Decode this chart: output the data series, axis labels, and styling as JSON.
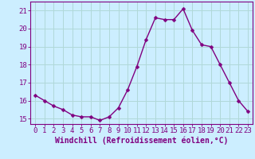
{
  "x": [
    0,
    1,
    2,
    3,
    4,
    5,
    6,
    7,
    8,
    9,
    10,
    11,
    12,
    13,
    14,
    15,
    16,
    17,
    18,
    19,
    20,
    21,
    22,
    23
  ],
  "y": [
    16.3,
    16.0,
    15.7,
    15.5,
    15.2,
    15.1,
    15.1,
    14.9,
    15.1,
    15.6,
    16.6,
    17.9,
    19.4,
    20.6,
    20.5,
    20.5,
    21.1,
    19.9,
    19.1,
    19.0,
    18.0,
    17.0,
    16.0,
    15.4
  ],
  "line_color": "#800080",
  "marker": "D",
  "marker_size": 2.5,
  "bg_color": "#cceeff",
  "grid_color": "#b0d8d8",
  "xlabel": "Windchill (Refroidissement éolien,°C)",
  "xlim": [
    -0.5,
    23.5
  ],
  "ylim": [
    14.7,
    21.5
  ],
  "xticks": [
    0,
    1,
    2,
    3,
    4,
    5,
    6,
    7,
    8,
    9,
    10,
    11,
    12,
    13,
    14,
    15,
    16,
    17,
    18,
    19,
    20,
    21,
    22,
    23
  ],
  "yticks": [
    15,
    16,
    17,
    18,
    19,
    20,
    21
  ],
  "xlabel_fontsize": 7.0,
  "tick_fontsize": 6.5,
  "line_width": 1.0
}
